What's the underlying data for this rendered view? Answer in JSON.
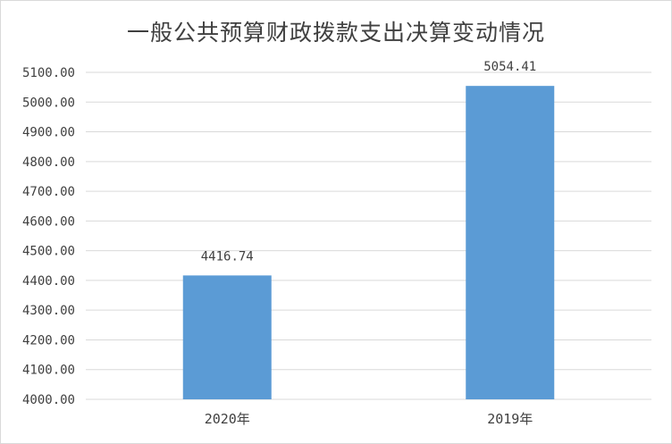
{
  "chart_data": {
    "type": "bar",
    "title": "一般公共预算财政拨款支出决算变动情况",
    "categories": [
      "2020年",
      "2019年"
    ],
    "values": [
      4416.74,
      5054.41
    ],
    "data_labels": [
      "4416.74",
      "5054.41"
    ],
    "xlabel": "",
    "ylabel": "",
    "ylim": [
      4000,
      5100
    ],
    "yticks": [
      "4000.00",
      "4100.00",
      "4200.00",
      "4300.00",
      "4400.00",
      "4500.00",
      "4600.00",
      "4700.00",
      "4800.00",
      "4900.00",
      "5000.00",
      "5100.00"
    ],
    "grid": true,
    "legend": "none",
    "bar_color": "#5b9bd5",
    "grid_color": "#d9d9d9"
  }
}
